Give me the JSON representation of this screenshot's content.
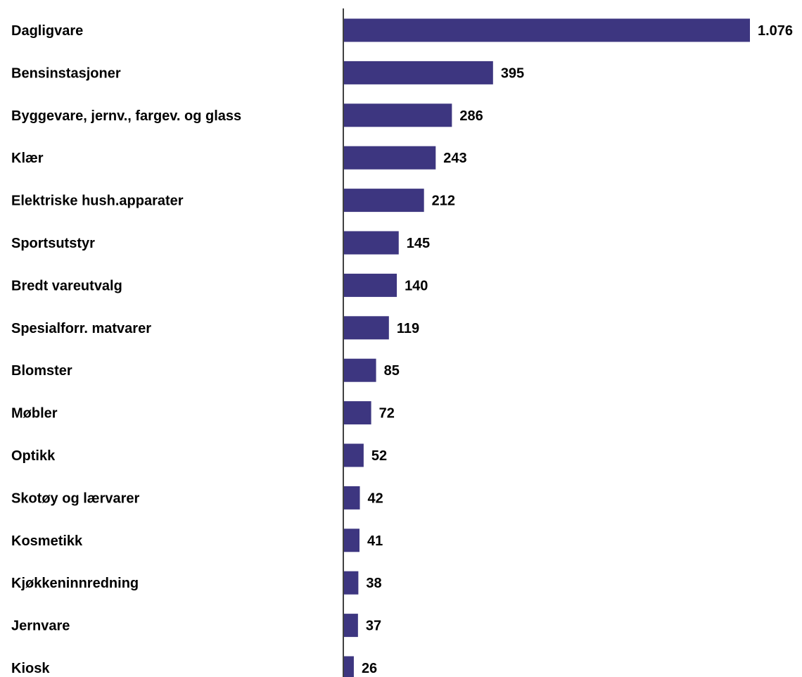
{
  "chart_data": {
    "type": "bar",
    "orientation": "horizontal",
    "categories": [
      "Dagligvare",
      "Bensinstasjoner",
      "Byggevare, jernv., fargev. og glass",
      "Klær",
      "Elektriske hush.apparater",
      "Sportsutstyr",
      "Bredt vareutvalg",
      "Spesialforr. matvarer",
      "Blomster",
      "Møbler",
      "Optikk",
      "Skotøy og lærvarer",
      "Kosmetikk",
      "Kjøkkeninnredning",
      "Jernvare",
      "Kiosk"
    ],
    "values": [
      1076,
      395,
      286,
      243,
      212,
      145,
      140,
      119,
      85,
      72,
      52,
      42,
      41,
      38,
      37,
      26
    ],
    "value_labels": [
      "1.076",
      "395",
      "286",
      "243",
      "212",
      "145",
      "140",
      "119",
      "85",
      "72",
      "52",
      "42",
      "41",
      "38",
      "37",
      "26"
    ],
    "title": "",
    "xlabel": "",
    "ylabel": "",
    "xlim": [
      0,
      1076
    ],
    "grid": false,
    "legend": "none",
    "bar_color": "#3d3680",
    "axis_color": "#000000"
  }
}
